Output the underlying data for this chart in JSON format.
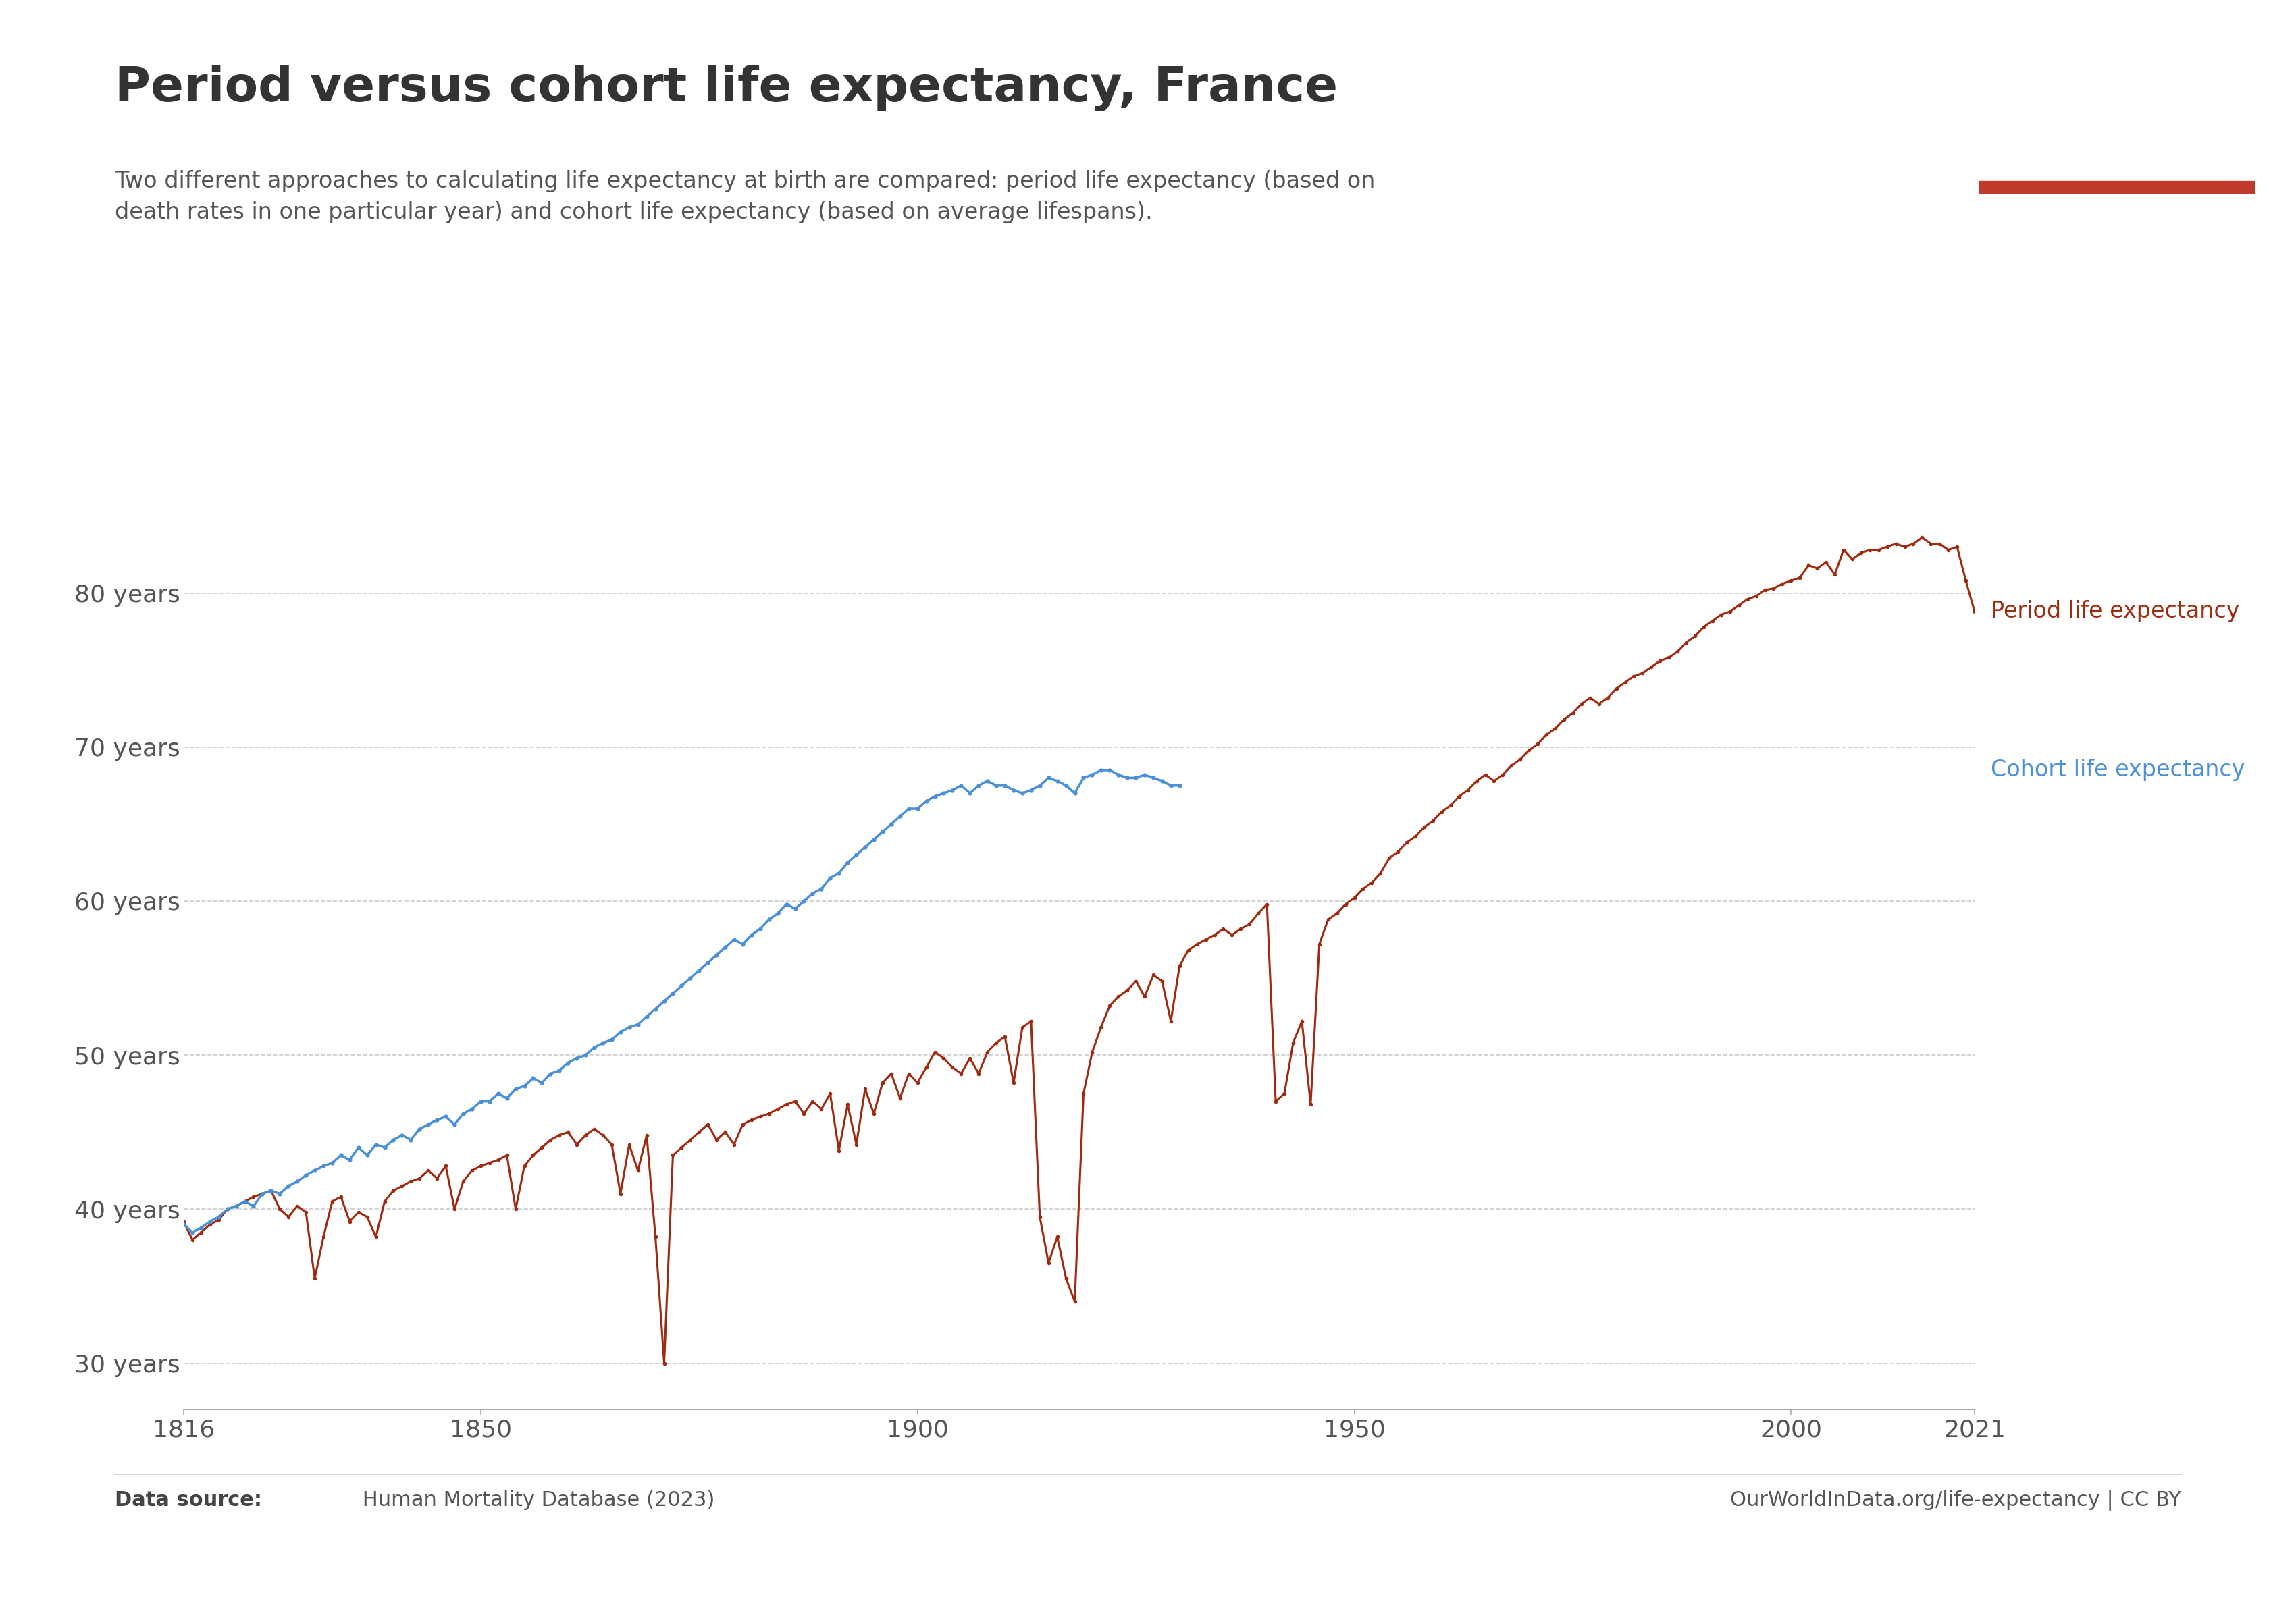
{
  "title": "Period versus cohort life expectancy, France",
  "subtitle": "Two different approaches to calculating life expectancy at birth are compared: period life expectancy (based on\ndeath rates in one particular year) and cohort life expectancy (based on average lifespans).",
  "period_label": "Period life expectancy",
  "cohort_label": "Cohort life expectancy",
  "period_color": "#9e2a10",
  "cohort_color": "#4a90d9",
  "background_color": "#ffffff",
  "source_bold": "Data source:",
  "source_rest": " Human Mortality Database (2023)",
  "url_text": "OurWorldInData.org/life-expectancy | CC BY",
  "owid_logo_bg": "#0d2e5e",
  "owid_logo_accent": "#c0392b",
  "ylim": [
    27,
    88
  ],
  "yticks": [
    30,
    40,
    50,
    60,
    70,
    80
  ],
  "ytick_labels": [
    "30 years",
    "40 years",
    "50 years",
    "60 years",
    "70 years",
    "80 years"
  ],
  "xticks": [
    1816,
    1850,
    1900,
    1950,
    2000,
    2021
  ],
  "period_years": [
    1816,
    1817,
    1818,
    1819,
    1820,
    1821,
    1822,
    1823,
    1824,
    1825,
    1826,
    1827,
    1828,
    1829,
    1830,
    1831,
    1832,
    1833,
    1834,
    1835,
    1836,
    1837,
    1838,
    1839,
    1840,
    1841,
    1842,
    1843,
    1844,
    1845,
    1846,
    1847,
    1848,
    1849,
    1850,
    1851,
    1852,
    1853,
    1854,
    1855,
    1856,
    1857,
    1858,
    1859,
    1860,
    1861,
    1862,
    1863,
    1864,
    1865,
    1866,
    1867,
    1868,
    1869,
    1870,
    1871,
    1872,
    1873,
    1874,
    1875,
    1876,
    1877,
    1878,
    1879,
    1880,
    1881,
    1882,
    1883,
    1884,
    1885,
    1886,
    1887,
    1888,
    1889,
    1890,
    1891,
    1892,
    1893,
    1894,
    1895,
    1896,
    1897,
    1898,
    1899,
    1900,
    1901,
    1902,
    1903,
    1904,
    1905,
    1906,
    1907,
    1908,
    1909,
    1910,
    1911,
    1912,
    1913,
    1914,
    1915,
    1916,
    1917,
    1918,
    1919,
    1920,
    1921,
    1922,
    1923,
    1924,
    1925,
    1926,
    1927,
    1928,
    1929,
    1930,
    1931,
    1932,
    1933,
    1934,
    1935,
    1936,
    1937,
    1938,
    1939,
    1940,
    1941,
    1942,
    1943,
    1944,
    1945,
    1946,
    1947,
    1948,
    1949,
    1950,
    1951,
    1952,
    1953,
    1954,
    1955,
    1956,
    1957,
    1958,
    1959,
    1960,
    1961,
    1962,
    1963,
    1964,
    1965,
    1966,
    1967,
    1968,
    1969,
    1970,
    1971,
    1972,
    1973,
    1974,
    1975,
    1976,
    1977,
    1978,
    1979,
    1980,
    1981,
    1982,
    1983,
    1984,
    1985,
    1986,
    1987,
    1988,
    1989,
    1990,
    1991,
    1992,
    1993,
    1994,
    1995,
    1996,
    1997,
    1998,
    1999,
    2000,
    2001,
    2002,
    2003,
    2004,
    2005,
    2006,
    2007,
    2008,
    2009,
    2010,
    2011,
    2012,
    2013,
    2014,
    2015,
    2016,
    2017,
    2018,
    2019,
    2020,
    2021
  ],
  "period_values": [
    39.2,
    38.0,
    38.5,
    39.0,
    39.3,
    40.0,
    40.2,
    40.5,
    40.8,
    41.0,
    41.2,
    40.0,
    39.5,
    40.2,
    39.8,
    35.5,
    38.2,
    40.5,
    40.8,
    39.2,
    39.8,
    39.5,
    38.2,
    40.5,
    41.2,
    41.5,
    41.8,
    42.0,
    42.5,
    42.0,
    42.8,
    40.0,
    41.8,
    42.5,
    42.8,
    43.0,
    43.2,
    43.5,
    40.0,
    42.8,
    43.5,
    44.0,
    44.5,
    44.8,
    45.0,
    44.2,
    44.8,
    45.2,
    44.8,
    44.2,
    41.0,
    44.2,
    42.5,
    44.8,
    38.2,
    30.0,
    43.5,
    44.0,
    44.5,
    45.0,
    45.5,
    44.5,
    45.0,
    44.2,
    45.5,
    45.8,
    46.0,
    46.2,
    46.5,
    46.8,
    47.0,
    46.2,
    47.0,
    46.5,
    47.5,
    43.8,
    46.8,
    44.2,
    47.8,
    46.2,
    48.2,
    48.8,
    47.2,
    48.8,
    48.2,
    49.2,
    50.2,
    49.8,
    49.2,
    48.8,
    49.8,
    48.8,
    50.2,
    50.8,
    51.2,
    48.2,
    51.8,
    52.2,
    39.5,
    36.5,
    38.2,
    35.5,
    34.0,
    47.5,
    50.2,
    51.8,
    53.2,
    53.8,
    54.2,
    54.8,
    53.8,
    55.2,
    54.8,
    52.2,
    55.8,
    56.8,
    57.2,
    57.5,
    57.8,
    58.2,
    57.8,
    58.2,
    58.5,
    59.2,
    59.8,
    47.0,
    47.5,
    50.8,
    52.2,
    46.8,
    57.2,
    58.8,
    59.2,
    59.8,
    60.2,
    60.8,
    61.2,
    61.8,
    62.8,
    63.2,
    63.8,
    64.2,
    64.8,
    65.2,
    65.8,
    66.2,
    66.8,
    67.2,
    67.8,
    68.2,
    67.8,
    68.2,
    68.8,
    69.2,
    69.8,
    70.2,
    70.8,
    71.2,
    71.8,
    72.2,
    72.8,
    73.2,
    72.8,
    73.2,
    73.8,
    74.2,
    74.6,
    74.8,
    75.2,
    75.6,
    75.8,
    76.2,
    76.8,
    77.2,
    77.8,
    78.2,
    78.6,
    78.8,
    79.2,
    79.6,
    79.8,
    80.2,
    80.3,
    80.6,
    80.8,
    81.0,
    81.8,
    81.6,
    82.0,
    81.2,
    82.8,
    82.2,
    82.6,
    82.8,
    82.8,
    83.0,
    83.2,
    83.0,
    83.2,
    83.6,
    83.2,
    83.2,
    82.8,
    83.0,
    80.8,
    78.8
  ],
  "cohort_years": [
    1816,
    1817,
    1818,
    1819,
    1820,
    1821,
    1822,
    1823,
    1824,
    1825,
    1826,
    1827,
    1828,
    1829,
    1830,
    1831,
    1832,
    1833,
    1834,
    1835,
    1836,
    1837,
    1838,
    1839,
    1840,
    1841,
    1842,
    1843,
    1844,
    1845,
    1846,
    1847,
    1848,
    1849,
    1850,
    1851,
    1852,
    1853,
    1854,
    1855,
    1856,
    1857,
    1858,
    1859,
    1860,
    1861,
    1862,
    1863,
    1864,
    1865,
    1866,
    1867,
    1868,
    1869,
    1870,
    1871,
    1872,
    1873,
    1874,
    1875,
    1876,
    1877,
    1878,
    1879,
    1880,
    1881,
    1882,
    1883,
    1884,
    1885,
    1886,
    1887,
    1888,
    1889,
    1890,
    1891,
    1892,
    1893,
    1894,
    1895,
    1896,
    1897,
    1898,
    1899,
    1900,
    1901,
    1902,
    1903,
    1904,
    1905,
    1906,
    1907,
    1908,
    1909,
    1910,
    1911,
    1912,
    1913,
    1914,
    1915,
    1916,
    1917,
    1918,
    1919,
    1920,
    1921,
    1922,
    1923,
    1924,
    1925,
    1926,
    1927,
    1928,
    1929,
    1930
  ],
  "cohort_values": [
    39.0,
    38.5,
    38.8,
    39.2,
    39.5,
    40.0,
    40.2,
    40.5,
    40.2,
    41.0,
    41.2,
    41.0,
    41.5,
    41.8,
    42.2,
    42.5,
    42.8,
    43.0,
    43.5,
    43.2,
    44.0,
    43.5,
    44.2,
    44.0,
    44.5,
    44.8,
    44.5,
    45.2,
    45.5,
    45.8,
    46.0,
    45.5,
    46.2,
    46.5,
    47.0,
    47.0,
    47.5,
    47.2,
    47.8,
    48.0,
    48.5,
    48.2,
    48.8,
    49.0,
    49.5,
    49.8,
    50.0,
    50.5,
    50.8,
    51.0,
    51.5,
    51.8,
    52.0,
    52.5,
    53.0,
    53.5,
    54.0,
    54.5,
    55.0,
    55.5,
    56.0,
    56.5,
    57.0,
    57.5,
    57.2,
    57.8,
    58.2,
    58.8,
    59.2,
    59.8,
    59.5,
    60.0,
    60.5,
    60.8,
    61.5,
    61.8,
    62.5,
    63.0,
    63.5,
    64.0,
    64.5,
    65.0,
    65.5,
    66.0,
    66.0,
    66.5,
    66.8,
    67.0,
    67.2,
    67.5,
    67.0,
    67.5,
    67.8,
    67.5,
    67.5,
    67.2,
    67.0,
    67.2,
    67.5,
    68.0,
    67.8,
    67.5,
    67.0,
    68.0,
    68.2,
    68.5,
    68.5,
    68.2,
    68.0,
    68.0,
    68.2,
    68.0,
    67.8,
    67.5,
    67.5
  ]
}
